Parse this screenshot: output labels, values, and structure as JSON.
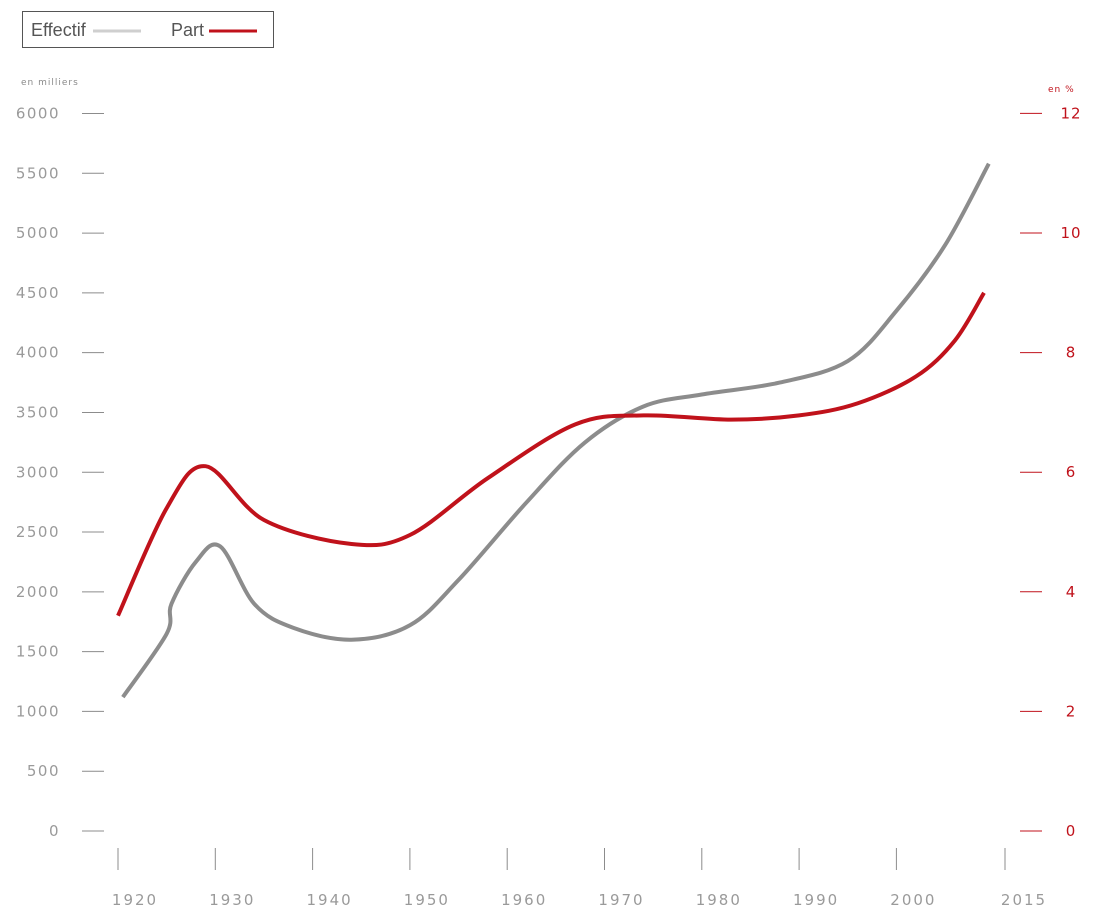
{
  "legend": {
    "effectif_label": "Effectif",
    "part_label": "Part"
  },
  "colors": {
    "effectif": "#8c8c8c",
    "effectif_legend": "#cfcfcf",
    "part": "#c0121b",
    "axis_text": "#9a9a9a",
    "tick_mark": "#8c8c8c"
  },
  "chart_data": {
    "type": "line",
    "left_axis": {
      "unit_label": "en milliers",
      "ticks": [
        0,
        500,
        1000,
        1500,
        2000,
        2500,
        3000,
        3500,
        4000,
        4500,
        5000,
        5500,
        6000
      ],
      "range": [
        0,
        6000
      ]
    },
    "right_axis": {
      "unit_label": "en %",
      "ticks": [
        0,
        2,
        4,
        6,
        8,
        10,
        12
      ],
      "range": [
        0,
        12
      ]
    },
    "x_axis": {
      "ticks": [
        1920,
        1930,
        1940,
        1950,
        1960,
        1970,
        1980,
        1990,
        2000,
        2015
      ],
      "tick_labels": [
        "1920",
        "1930",
        "1940",
        "1950",
        "1960",
        "1970",
        "1980",
        "1990",
        "2000",
        "2015"
      ]
    },
    "series": [
      {
        "name": "Effectif",
        "axis": "left",
        "points": [
          {
            "x": 1920.5,
            "y": 1120
          },
          {
            "x": 1925,
            "y": 1650
          },
          {
            "x": 1925.5,
            "y": 1900
          },
          {
            "x": 1928,
            "y": 2250
          },
          {
            "x": 1930.5,
            "y": 2380
          },
          {
            "x": 1934,
            "y": 1900
          },
          {
            "x": 1938,
            "y": 1700
          },
          {
            "x": 1944,
            "y": 1600
          },
          {
            "x": 1950,
            "y": 1720
          },
          {
            "x": 1955,
            "y": 2100
          },
          {
            "x": 1962,
            "y": 2750
          },
          {
            "x": 1968,
            "y": 3250
          },
          {
            "x": 1974,
            "y": 3550
          },
          {
            "x": 1980,
            "y": 3650
          },
          {
            "x": 1988,
            "y": 3750
          },
          {
            "x": 1995,
            "y": 3930
          },
          {
            "x": 2000,
            "y": 4350
          },
          {
            "x": 2005,
            "y": 4900
          },
          {
            "x": 2009.5,
            "y": 5580
          }
        ]
      },
      {
        "name": "Part",
        "axis": "right",
        "points": [
          {
            "x": 1920,
            "y": 3.6
          },
          {
            "x": 1925,
            "y": 5.4
          },
          {
            "x": 1929,
            "y": 6.1
          },
          {
            "x": 1935,
            "y": 5.2
          },
          {
            "x": 1944,
            "y": 4.8
          },
          {
            "x": 1950,
            "y": 4.95
          },
          {
            "x": 1958,
            "y": 5.9
          },
          {
            "x": 1967,
            "y": 6.8
          },
          {
            "x": 1974,
            "y": 6.95
          },
          {
            "x": 1983,
            "y": 6.88
          },
          {
            "x": 1990,
            "y": 6.95
          },
          {
            "x": 1996,
            "y": 7.15
          },
          {
            "x": 2002,
            "y": 7.6
          },
          {
            "x": 2006,
            "y": 8.2
          },
          {
            "x": 2009,
            "y": 9.0
          }
        ]
      }
    ],
    "grid": false,
    "legend_position": "top-left"
  }
}
